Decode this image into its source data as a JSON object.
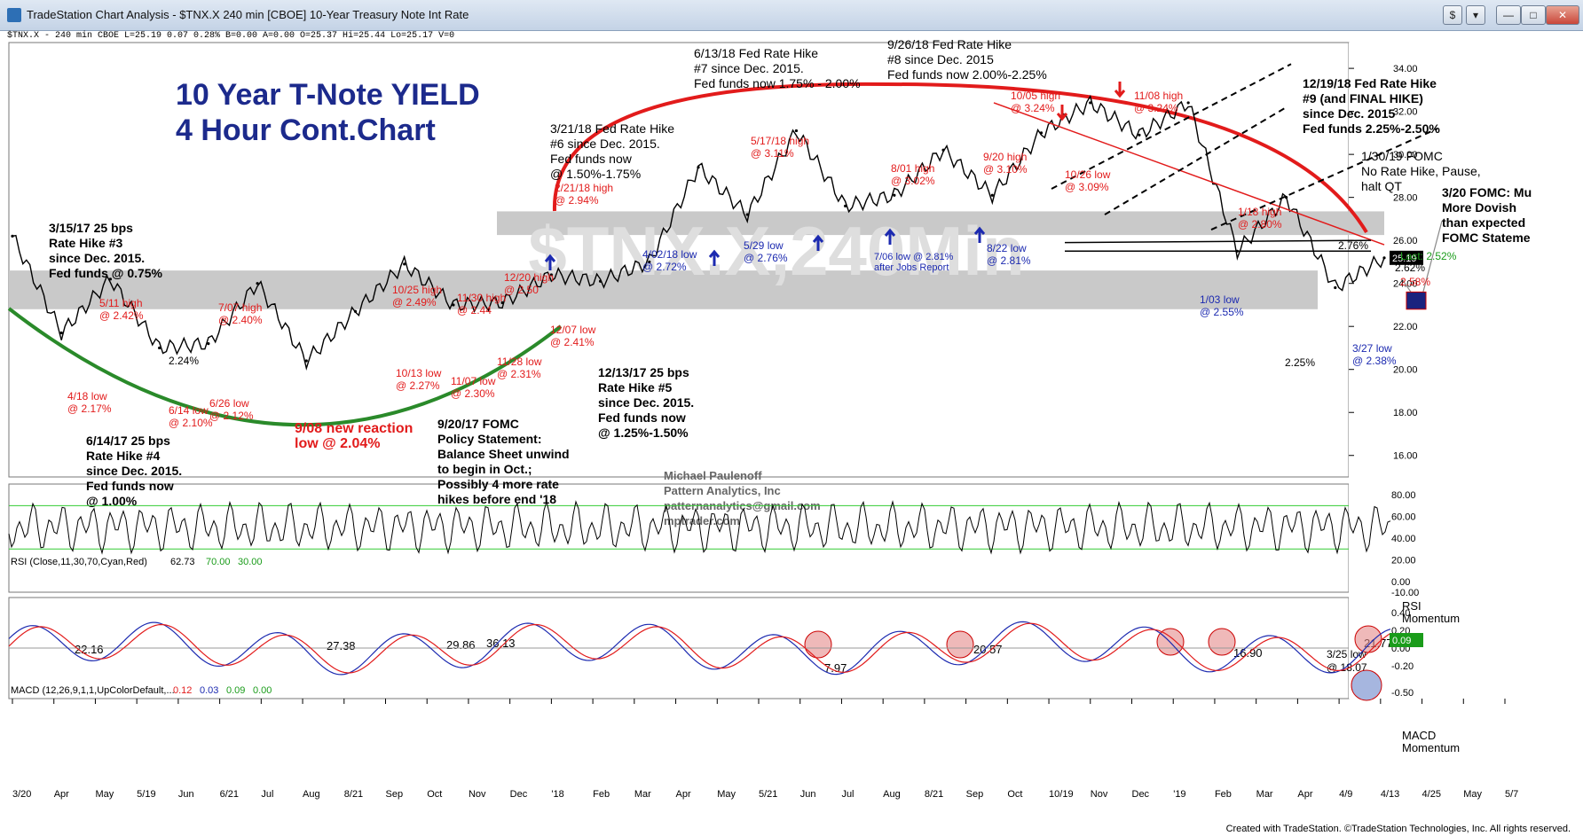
{
  "window": {
    "title": "TradeStation Chart Analysis - $TNX.X 240 min [CBOE] 10-Year Treasury Note Int Rate",
    "buttons": [
      "$",
      "▾",
      "—",
      "□",
      "✕"
    ]
  },
  "status_line": "$TNX.X - 240 min  CBOE  L=25.19  0.07  0.28%  B=0.00  A=0.00  O=25.37  Hi=25.44  Lo=25.17  V=0",
  "watermark": "$TNX.X,240Min",
  "chart_title": [
    "10 Year T-Note YIELD",
    "4 Hour Cont.Chart"
  ],
  "author": [
    "Michael Paulenoff",
    "Pattern Analytics, Inc",
    "patternanalytics@gmail.com",
    "mptrader.com"
  ],
  "price_panel": {
    "y_ticks": [
      "34.00",
      "32.00",
      "30.00",
      "28.00",
      "26.00",
      "24.00",
      "22.00",
      "20.00",
      "18.00",
      "16.00"
    ],
    "last_price": "25.19",
    "last_label": "Last: 2.52%"
  },
  "x_axis": [
    "3/20",
    "Apr",
    "May",
    "5/19",
    "Jun",
    "6/21",
    "Jul",
    "Aug",
    "8/21",
    "Sep",
    "Oct",
    "Nov",
    "Dec",
    "'18",
    "Feb",
    "Mar",
    "Apr",
    "May",
    "5/21",
    "Jun",
    "Jul",
    "Aug",
    "8/21",
    "Sep",
    "Oct",
    "10/19",
    "Nov",
    "Dec",
    "'19",
    "Feb",
    "Mar",
    "Apr",
    "4/9",
    "4/13",
    "4/25",
    "May",
    "5/7"
  ],
  "annotations": {
    "black": [
      [
        "3/15/17 25 bps",
        "Rate Hike #3",
        "since Dec. 2015.",
        "Fed funds @ 0.75%"
      ],
      [
        "6/14/17 25 bps",
        "Rate Hike #4",
        "since Dec. 2015.",
        "Fed funds now",
        "@ 1.00%"
      ],
      [
        "9/20/17 FOMC",
        "Policy Statement:",
        "Balance Sheet unwind",
        "to begin in Oct.;",
        "Possibly 4 more rate",
        "hikes before end '18"
      ],
      [
        "12/13/17 25 bps",
        "Rate Hike #5",
        "since Dec. 2015.",
        "Fed funds now",
        "@ 1.25%-1.50%"
      ],
      [
        "3/21/18 Fed Rate Hike",
        "#6 since Dec. 2015.",
        "Fed funds now",
        "@ 1.50%-1.75%"
      ],
      [
        "6/13/18 Fed Rate Hike",
        "#7 since Dec. 2015.",
        "Fed funds now 1.75% - 2.00%"
      ],
      [
        "9/26/18 Fed Rate Hike",
        "#8 since Dec. 2015",
        "Fed funds now 2.00%-2.25%"
      ],
      [
        "12/19/18 Fed Rate Hike",
        "#9 (and FINAL HIKE)",
        "since Dec. 2015",
        "Fed funds 2.25%-2.50%"
      ],
      [
        "1/30/19 FOMC",
        "No Rate Hike, Pause,",
        "halt QT"
      ],
      [
        "3/20 FOMC: Mu",
        "More Dovish",
        "than expected",
        "FOMC Stateme"
      ]
    ],
    "red": [
      [
        "5/11 high",
        "@ 2.42%"
      ],
      [
        "7/07 high",
        "@ 2.40%"
      ],
      [
        "10/25 high",
        "@ 2.49%"
      ],
      [
        "11/30 high",
        "@ 2.44"
      ],
      [
        "12/20 high",
        "@ 2.50"
      ],
      [
        "12/07 low",
        "@ 2.41%"
      ],
      [
        "4/18 low",
        "@ 2.17%"
      ],
      [
        "6/14 low",
        "@ 2.10%"
      ],
      [
        "6/26 low",
        "@ 2.12%"
      ],
      [
        "9/08 new reaction",
        "low @ 2.04%"
      ],
      [
        "10/13 low",
        "@ 2.27%"
      ],
      [
        "11/07 low",
        "@ 2.30%"
      ],
      [
        "11/28 low",
        "@ 2.31%"
      ],
      [
        "2/21/18 high",
        "@ 2.94%"
      ],
      [
        "5/17/18 high",
        "@ 3.11%"
      ],
      [
        "8/01 high",
        "@ 3.02%"
      ],
      [
        "9/20 high",
        "@ 3.10%"
      ],
      [
        "10/05 high",
        "@ 3.24%"
      ],
      [
        "10/26 low",
        "@ 3.09%"
      ],
      [
        "11/08 high",
        "@ 3.24%"
      ],
      [
        "1/18 high",
        "@ 2.80%"
      ],
      [
        "2.58%"
      ]
    ],
    "blue": [
      [
        "4/02/18 low",
        "@ 2.72%"
      ],
      [
        "5/29 low",
        "@ 2.76%"
      ],
      [
        "7/06 low @ 2.81%",
        "after Jobs Report"
      ],
      [
        "8/22 low",
        "@ 2.81%"
      ],
      [
        "1/03 low",
        "@ 2.55%"
      ],
      [
        "3/27 low",
        "@ 2.38%"
      ]
    ],
    "misc": [
      "2.24%",
      "2.76%",
      "2.62%",
      "2.25%"
    ]
  },
  "rsi_panel": {
    "label": "RSI (Close,11,30,70,Cyan,Red)",
    "value": "62.73",
    "level_high": "70.00",
    "level_low": "30.00",
    "y_ticks": [
      "80.00",
      "60.00",
      "40.00",
      "20.00",
      "0.00",
      "-10.00"
    ],
    "value_labels": [
      "22.16",
      "27.38",
      "29.86",
      "36.13",
      "7.97",
      "20.57",
      "16.90",
      "21.77"
    ],
    "annotation": [
      "3/25 low",
      "@ 18.07"
    ],
    "side_label": [
      "RSI",
      "Momentum"
    ]
  },
  "macd_panel": {
    "label": "MACD (12,26,9,1,1,UpColorDefault,...",
    "values": [
      "0.12",
      "0.03",
      "0.09",
      "0.00"
    ],
    "y_ticks": [
      "0.40",
      "0.20",
      "0.00",
      "-0.20",
      "-0.50"
    ],
    "last_value": "0.09",
    "side_label": [
      "MACD",
      "Momentum"
    ]
  },
  "footer": "Created with TradeStation. ©TradeStation Technologies, Inc. All rights reserved.",
  "chart_data": {
    "type": "line",
    "title": "10 Year T-Note YIELD 4 Hour Cont.Chart",
    "series": [
      {
        "x": [
          "3/20",
          "4/18",
          "5/11",
          "6/14",
          "6/26",
          "7/07",
          "9/08",
          "10/13",
          "10/25",
          "11/07",
          "11/28",
          "11/30",
          "12/07",
          "12/20",
          "2/21/18",
          "4/02/18",
          "5/17/18",
          "5/29",
          "7/06",
          "8/01",
          "8/22",
          "9/20",
          "10/05",
          "10/26",
          "11/08",
          "1/03",
          "1/18",
          "3/27",
          "Last"
        ],
        "values": [
          26.2,
          21.7,
          24.2,
          21.0,
          21.2,
          24.0,
          20.4,
          22.7,
          24.9,
          23.0,
          23.1,
          24.4,
          24.1,
          25.0,
          29.4,
          27.2,
          31.1,
          27.6,
          28.1,
          30.2,
          28.1,
          31.0,
          32.4,
          30.9,
          32.4,
          25.5,
          28.0,
          23.8,
          25.19
        ],
        "ylim": [
          15.0,
          35.2
        ]
      }
    ]
  }
}
